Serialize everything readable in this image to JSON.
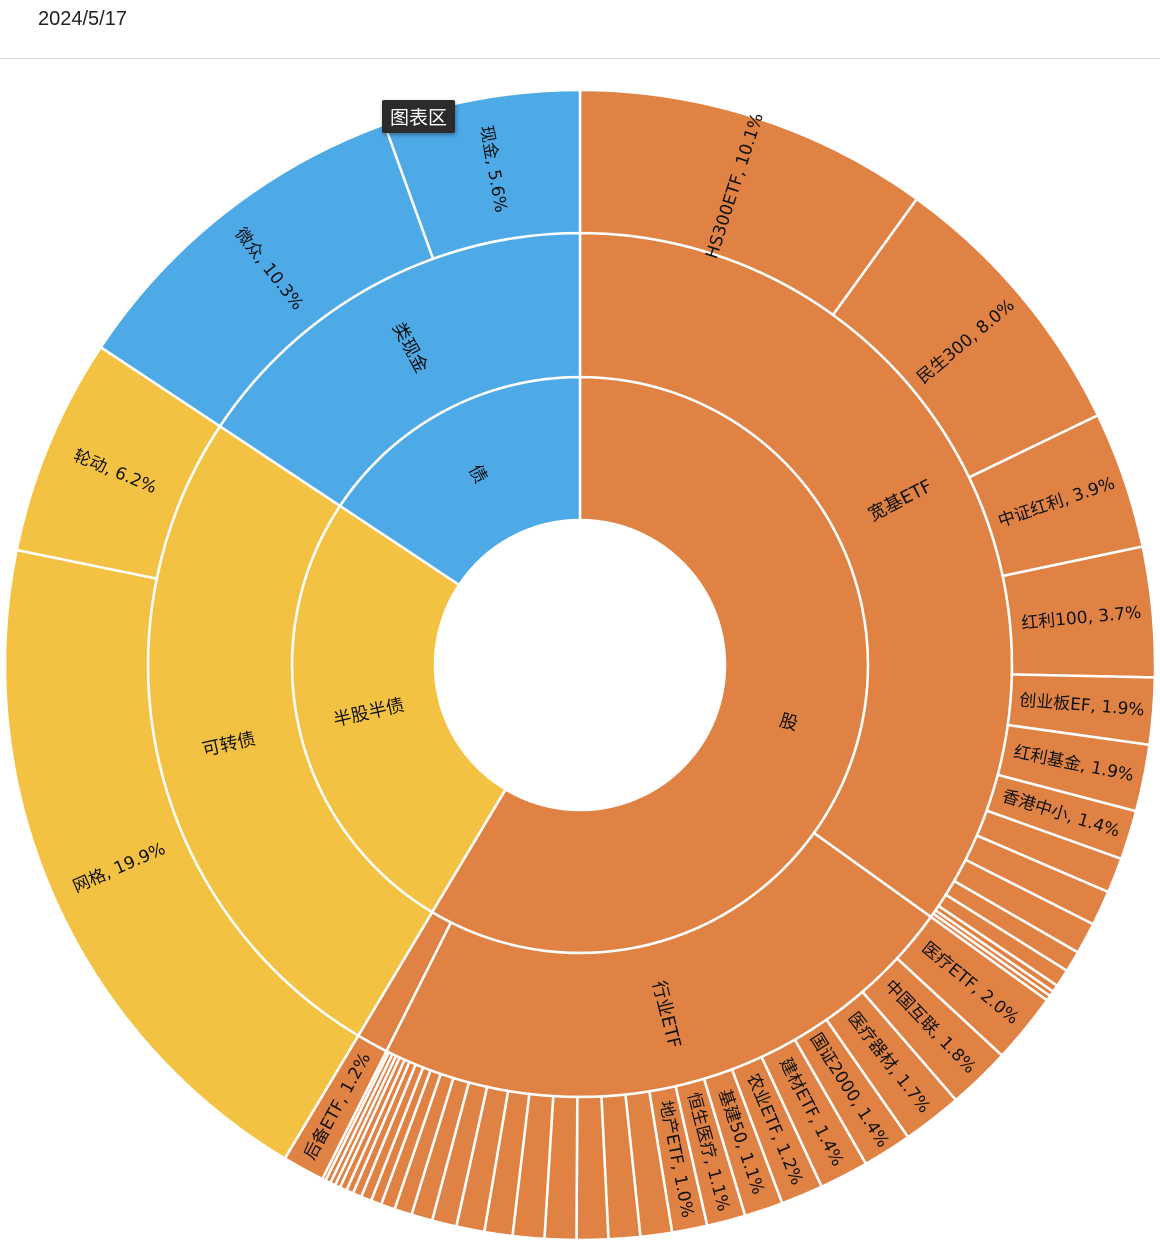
{
  "header": {
    "date": "2024/5/17"
  },
  "tooltip": {
    "label": "图表区"
  },
  "colors": {
    "stock": "#DF8244",
    "half": "#F4C242",
    "bond": "#4EA9E7"
  },
  "chart_data": {
    "type": "sunburst",
    "title": "",
    "root": [
      {
        "name": "股",
        "color": "stock",
        "children": [
          {
            "name": "宽基ETF",
            "children": [
              {
                "name": "HS300ETF",
                "value": 10.1,
                "label": "HS300ETF, 10.1%"
              },
              {
                "name": "民生300",
                "value": 8.0,
                "label": "民生300, 8.0%"
              },
              {
                "name": "中证红利",
                "value": 3.9,
                "label": "中证红利, 3.9%"
              },
              {
                "name": "红利100",
                "value": 3.7,
                "label": "红利100, 3.7%"
              },
              {
                "name": "创业板EF",
                "value": 1.9,
                "label": "创业板EF, 1.9%"
              },
              {
                "name": "红利基金",
                "value": 1.9,
                "label": "红利基金, 1.9%"
              },
              {
                "name": "香港中小",
                "value": 1.4,
                "label": "香港中小, 1.4%"
              },
              {
                "name": "",
                "value": 1.0,
                "label": ""
              },
              {
                "name": "",
                "value": 1.0,
                "label": ""
              },
              {
                "name": "",
                "value": 0.9,
                "label": ""
              },
              {
                "name": "",
                "value": 0.6,
                "label": ""
              },
              {
                "name": "",
                "value": 0.5,
                "label": ""
              },
              {
                "name": "",
                "value": 0.2,
                "label": ""
              },
              {
                "name": "",
                "value": 0.15,
                "label": ""
              },
              {
                "name": "",
                "value": 0.15,
                "label": ""
              }
            ]
          },
          {
            "name": "行业ETF",
            "children": [
              {
                "name": "医疗ETF",
                "value": 2.0,
                "label": "医疗ETF, 2.0%"
              },
              {
                "name": "中国互联",
                "value": 1.8,
                "label": "中国互联, 1.8%"
              },
              {
                "name": "医疗器材",
                "value": 1.7,
                "label": "医疗器材, 1.7%"
              },
              {
                "name": "国证2000",
                "value": 1.4,
                "label": "国证2000, 1.4%"
              },
              {
                "name": "建材ETF",
                "value": 1.4,
                "label": "建材ETF, 1.4%"
              },
              {
                "name": "农业ETF",
                "value": 1.2,
                "label": "农业ETF, 1.2%"
              },
              {
                "name": "基建50",
                "value": 1.1,
                "label": "基建50, 1.1%"
              },
              {
                "name": "恒生医疗",
                "value": 1.1,
                "label": "恒生医疗, 1.1%"
              },
              {
                "name": "地产ETF",
                "value": 1.0,
                "label": "地产ETF, 1.0%"
              },
              {
                "name": "",
                "value": 0.9,
                "label": ""
              },
              {
                "name": "",
                "value": 0.9,
                "label": ""
              },
              {
                "name": "",
                "value": 0.9,
                "label": ""
              },
              {
                "name": "",
                "value": 0.9,
                "label": ""
              },
              {
                "name": "",
                "value": 0.9,
                "label": ""
              },
              {
                "name": "",
                "value": 0.8,
                "label": ""
              },
              {
                "name": "",
                "value": 0.8,
                "label": ""
              },
              {
                "name": "",
                "value": 0.7,
                "label": ""
              },
              {
                "name": "",
                "value": 0.6,
                "label": ""
              },
              {
                "name": "",
                "value": 0.5,
                "label": ""
              },
              {
                "name": "",
                "value": 0.4,
                "label": ""
              },
              {
                "name": "",
                "value": 0.3,
                "label": ""
              },
              {
                "name": "",
                "value": 0.3,
                "label": ""
              },
              {
                "name": "",
                "value": 0.25,
                "label": ""
              },
              {
                "name": "",
                "value": 0.2,
                "label": ""
              },
              {
                "name": "",
                "value": 0.2,
                "label": ""
              },
              {
                "name": "",
                "value": 0.15,
                "label": ""
              },
              {
                "name": "",
                "value": 0.15,
                "label": ""
              },
              {
                "name": "",
                "value": 0.15,
                "label": ""
              },
              {
                "name": "",
                "value": 0.1,
                "label": ""
              }
            ]
          },
          {
            "name": "",
            "children": [
              {
                "name": "后备ETF",
                "value": 1.2,
                "label": "后备ETF, 1.2%"
              }
            ]
          }
        ]
      },
      {
        "name": "半股半债",
        "color": "half",
        "children": [
          {
            "name": "可转债",
            "children": [
              {
                "name": "网格",
                "value": 19.9,
                "label": "网格, 19.9%"
              },
              {
                "name": "轮动",
                "value": 6.2,
                "label": "轮动, 6.2%"
              }
            ]
          }
        ]
      },
      {
        "name": "债",
        "color": "bond",
        "children": [
          {
            "name": "类现金",
            "children": [
              {
                "name": "微众",
                "value": 10.3,
                "label": "微众, 10.3%"
              },
              {
                "name": "现金",
                "value": 5.6,
                "label": "现金, 5.6%"
              }
            ]
          }
        ]
      }
    ]
  }
}
